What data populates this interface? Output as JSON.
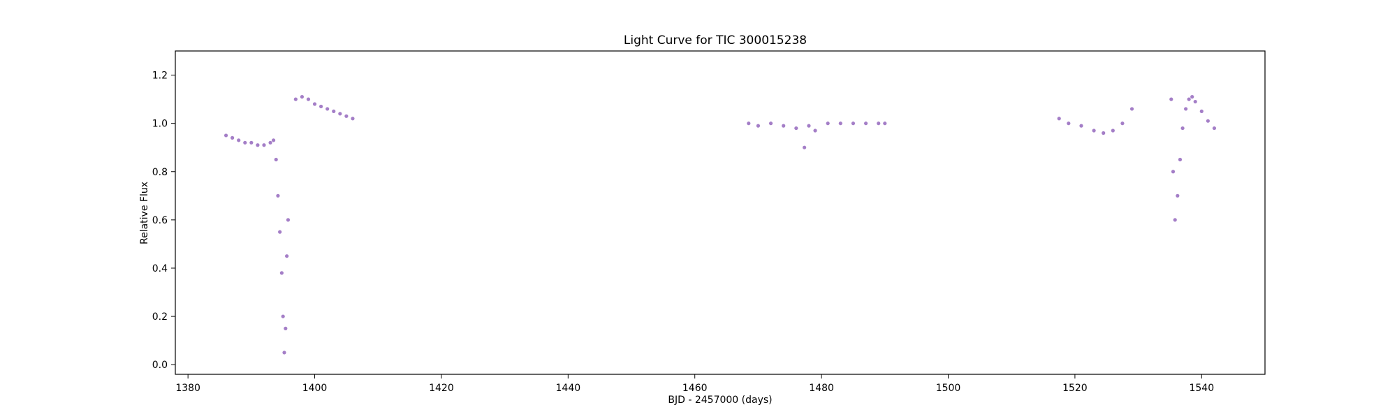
{
  "chart_data": {
    "type": "scatter",
    "title": "Light Curve for TIC 300015238",
    "xlabel": "BJD - 2457000 (days)",
    "ylabel": "Relative Flux",
    "xlim": [
      1378,
      1550
    ],
    "ylim": [
      -0.04,
      1.3
    ],
    "xticks": [
      1380,
      1400,
      1420,
      1440,
      1460,
      1480,
      1500,
      1520,
      1540
    ],
    "yticks": [
      0.0,
      0.2,
      0.4,
      0.6,
      0.8,
      1.0,
      1.2
    ],
    "grid": false,
    "legend": "none",
    "marker_color": "#9467bd",
    "series": [
      {
        "points": [
          [
            1386.0,
            0.95
          ],
          [
            1387.0,
            0.94
          ],
          [
            1388.0,
            0.93
          ],
          [
            1389.0,
            0.92
          ],
          [
            1390.0,
            0.92
          ],
          [
            1391.0,
            0.91
          ],
          [
            1392.0,
            0.91
          ],
          [
            1393.0,
            0.92
          ],
          [
            1393.5,
            0.93
          ],
          [
            1393.9,
            0.85
          ],
          [
            1394.2,
            0.7
          ],
          [
            1394.5,
            0.55
          ],
          [
            1394.8,
            0.38
          ],
          [
            1395.0,
            0.2
          ],
          [
            1395.2,
            0.05
          ],
          [
            1395.4,
            0.15
          ],
          [
            1395.6,
            0.45
          ],
          [
            1395.8,
            0.6
          ],
          [
            1397.0,
            1.1
          ],
          [
            1398.0,
            1.11
          ],
          [
            1399.0,
            1.1
          ],
          [
            1400.0,
            1.08
          ],
          [
            1401.0,
            1.07
          ],
          [
            1402.0,
            1.06
          ],
          [
            1403.0,
            1.05
          ],
          [
            1404.0,
            1.04
          ],
          [
            1405.0,
            1.03
          ],
          [
            1406.0,
            1.02
          ],
          [
            1468.5,
            1.0
          ],
          [
            1470.0,
            0.99
          ],
          [
            1472.0,
            1.0
          ],
          [
            1474.0,
            0.99
          ],
          [
            1476.0,
            0.98
          ],
          [
            1477.3,
            0.9
          ],
          [
            1478.0,
            0.99
          ],
          [
            1479.0,
            0.97
          ],
          [
            1481.0,
            1.0
          ],
          [
            1483.0,
            1.0
          ],
          [
            1485.0,
            1.0
          ],
          [
            1487.0,
            1.0
          ],
          [
            1489.0,
            1.0
          ],
          [
            1490.0,
            1.0
          ],
          [
            1517.5,
            1.02
          ],
          [
            1519.0,
            1.0
          ],
          [
            1521.0,
            0.99
          ],
          [
            1523.0,
            0.97
          ],
          [
            1524.5,
            0.96
          ],
          [
            1526.0,
            0.97
          ],
          [
            1527.5,
            1.0
          ],
          [
            1529.0,
            1.06
          ],
          [
            1535.2,
            1.1
          ],
          [
            1535.5,
            0.8
          ],
          [
            1535.8,
            0.6
          ],
          [
            1536.2,
            0.7
          ],
          [
            1536.6,
            0.85
          ],
          [
            1537.0,
            0.98
          ],
          [
            1537.5,
            1.06
          ],
          [
            1538.0,
            1.1
          ],
          [
            1538.5,
            1.11
          ],
          [
            1539.0,
            1.09
          ],
          [
            1540.0,
            1.05
          ],
          [
            1541.0,
            1.01
          ],
          [
            1542.0,
            0.98
          ]
        ]
      }
    ]
  }
}
